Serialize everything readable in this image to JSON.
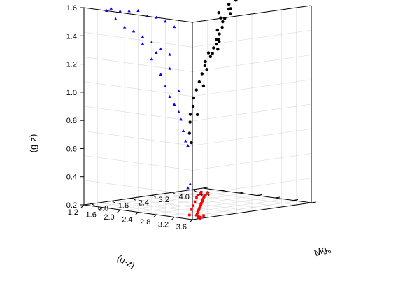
{
  "chart_data": {
    "type": "scatter",
    "title": "",
    "axes": {
      "x": {
        "label": "(u-z)",
        "ticks": [
          "1.2",
          "1.6",
          "2.0",
          "2.4",
          "2.8",
          "3.2",
          "3.6"
        ],
        "range": [
          1.2,
          3.6
        ]
      },
      "y": {
        "label": "Mg",
        "label_subscript": "b",
        "ticks": [
          "0.8",
          "1.6",
          "2.4",
          "3.2",
          "4.0",
          "4.8"
        ],
        "range": [
          0.5,
          5.2
        ]
      },
      "z": {
        "label": "(g-z)",
        "ticks": [
          "0.2",
          "0.4",
          "0.6",
          "0.8",
          "1.0",
          "1.2",
          "1.4",
          "1.6"
        ],
        "range": [
          0.2,
          1.6
        ]
      }
    },
    "grid": true,
    "legend": "none",
    "series": [
      {
        "projection": "3D points (u-z, Mgb, g-z)",
        "color": "#000000",
        "marker": "circle",
        "points": [
          [
            2.0,
            4.8,
            1.55
          ],
          [
            2.1,
            4.9,
            1.58
          ],
          [
            2.05,
            4.7,
            1.52
          ],
          [
            2.15,
            4.6,
            1.53
          ],
          [
            2.2,
            4.5,
            1.5
          ],
          [
            2.1,
            4.3,
            1.47
          ],
          [
            2.2,
            4.2,
            1.45
          ],
          [
            2.3,
            4.0,
            1.42
          ],
          [
            2.25,
            3.9,
            1.4
          ],
          [
            2.35,
            3.8,
            1.38
          ],
          [
            2.4,
            3.6,
            1.35
          ],
          [
            2.45,
            3.5,
            1.32
          ],
          [
            2.5,
            3.3,
            1.3
          ],
          [
            2.5,
            3.1,
            1.27
          ],
          [
            2.6,
            3.0,
            1.25
          ],
          [
            2.6,
            2.8,
            1.22
          ],
          [
            2.7,
            2.6,
            1.2
          ],
          [
            2.75,
            2.4,
            1.15
          ],
          [
            2.8,
            2.2,
            1.1
          ],
          [
            2.85,
            2.0,
            1.05
          ],
          [
            2.9,
            1.8,
            1.0
          ],
          [
            3.0,
            1.6,
            0.95
          ],
          [
            3.05,
            1.4,
            0.9
          ],
          [
            3.1,
            1.3,
            0.85
          ],
          [
            3.2,
            1.1,
            0.78
          ],
          [
            3.3,
            1.0,
            0.72
          ],
          [
            2.3,
            4.1,
            1.48
          ],
          [
            2.0,
            4.4,
            1.5
          ],
          [
            2.4,
            3.7,
            1.33
          ],
          [
            2.7,
            2.9,
            1.28
          ],
          [
            2.8,
            2.5,
            1.18
          ],
          [
            2.95,
            2.1,
            1.08
          ],
          [
            3.15,
            1.5,
            0.9
          ],
          [
            2.55,
            3.4,
            1.36
          ],
          [
            2.65,
            3.2,
            1.3
          ]
        ]
      },
      {
        "projection": "(u-z) vs (g-z) on left back wall",
        "color": "#0000ff",
        "marker": "triangle",
        "points": [
          [
            1.7,
            1.6
          ],
          [
            1.8,
            1.62
          ],
          [
            2.0,
            1.61
          ],
          [
            2.2,
            1.62
          ],
          [
            2.4,
            1.63
          ],
          [
            2.6,
            1.6
          ],
          [
            2.8,
            1.6
          ],
          [
            3.0,
            1.58
          ],
          [
            3.2,
            1.55
          ],
          [
            1.9,
            1.55
          ],
          [
            2.1,
            1.5
          ],
          [
            2.3,
            1.48
          ],
          [
            2.5,
            1.45
          ],
          [
            2.7,
            1.42
          ],
          [
            2.9,
            1.38
          ],
          [
            3.1,
            1.35
          ],
          [
            2.5,
            1.4
          ],
          [
            2.7,
            1.3
          ],
          [
            2.9,
            1.2
          ],
          [
            3.0,
            1.12
          ],
          [
            3.1,
            1.05
          ],
          [
            3.2,
            1.0
          ],
          [
            3.3,
            0.95
          ],
          [
            3.35,
            0.9
          ],
          [
            3.4,
            0.82
          ],
          [
            3.45,
            0.75
          ],
          [
            3.5,
            0.72
          ],
          [
            3.3,
            1.1
          ],
          [
            3.1,
            1.25
          ],
          [
            2.8,
            1.35
          ],
          [
            3.55,
            0.45
          ],
          [
            3.5,
            0.42
          ]
        ]
      },
      {
        "projection": "(u-z) vs Mgb on floor",
        "color": "#ff0000",
        "marker": "square",
        "points": [
          [
            1.5,
            4.6
          ],
          [
            1.6,
            4.4
          ],
          [
            1.7,
            4.5
          ],
          [
            1.8,
            4.2
          ],
          [
            1.9,
            4.0
          ],
          [
            2.0,
            3.8
          ],
          [
            2.1,
            3.6
          ],
          [
            2.2,
            3.4
          ],
          [
            2.3,
            3.2
          ],
          [
            2.4,
            3.0
          ],
          [
            2.5,
            2.8
          ],
          [
            2.6,
            2.6
          ],
          [
            2.7,
            2.4
          ],
          [
            2.8,
            2.2
          ],
          [
            2.9,
            2.0
          ],
          [
            3.0,
            1.8
          ],
          [
            3.1,
            1.6
          ],
          [
            3.2,
            1.4
          ],
          [
            3.3,
            1.2
          ],
          [
            3.4,
            1.1
          ],
          [
            3.5,
            0.9
          ],
          [
            1.7,
            4.1
          ],
          [
            1.9,
            3.7
          ],
          [
            2.2,
            3.1
          ],
          [
            2.5,
            2.5
          ],
          [
            2.8,
            1.9
          ],
          [
            3.2,
            1.1
          ],
          [
            3.4,
            1.3
          ],
          [
            3.5,
            1.0
          ],
          [
            3.6,
            0.8
          ]
        ]
      }
    ]
  }
}
